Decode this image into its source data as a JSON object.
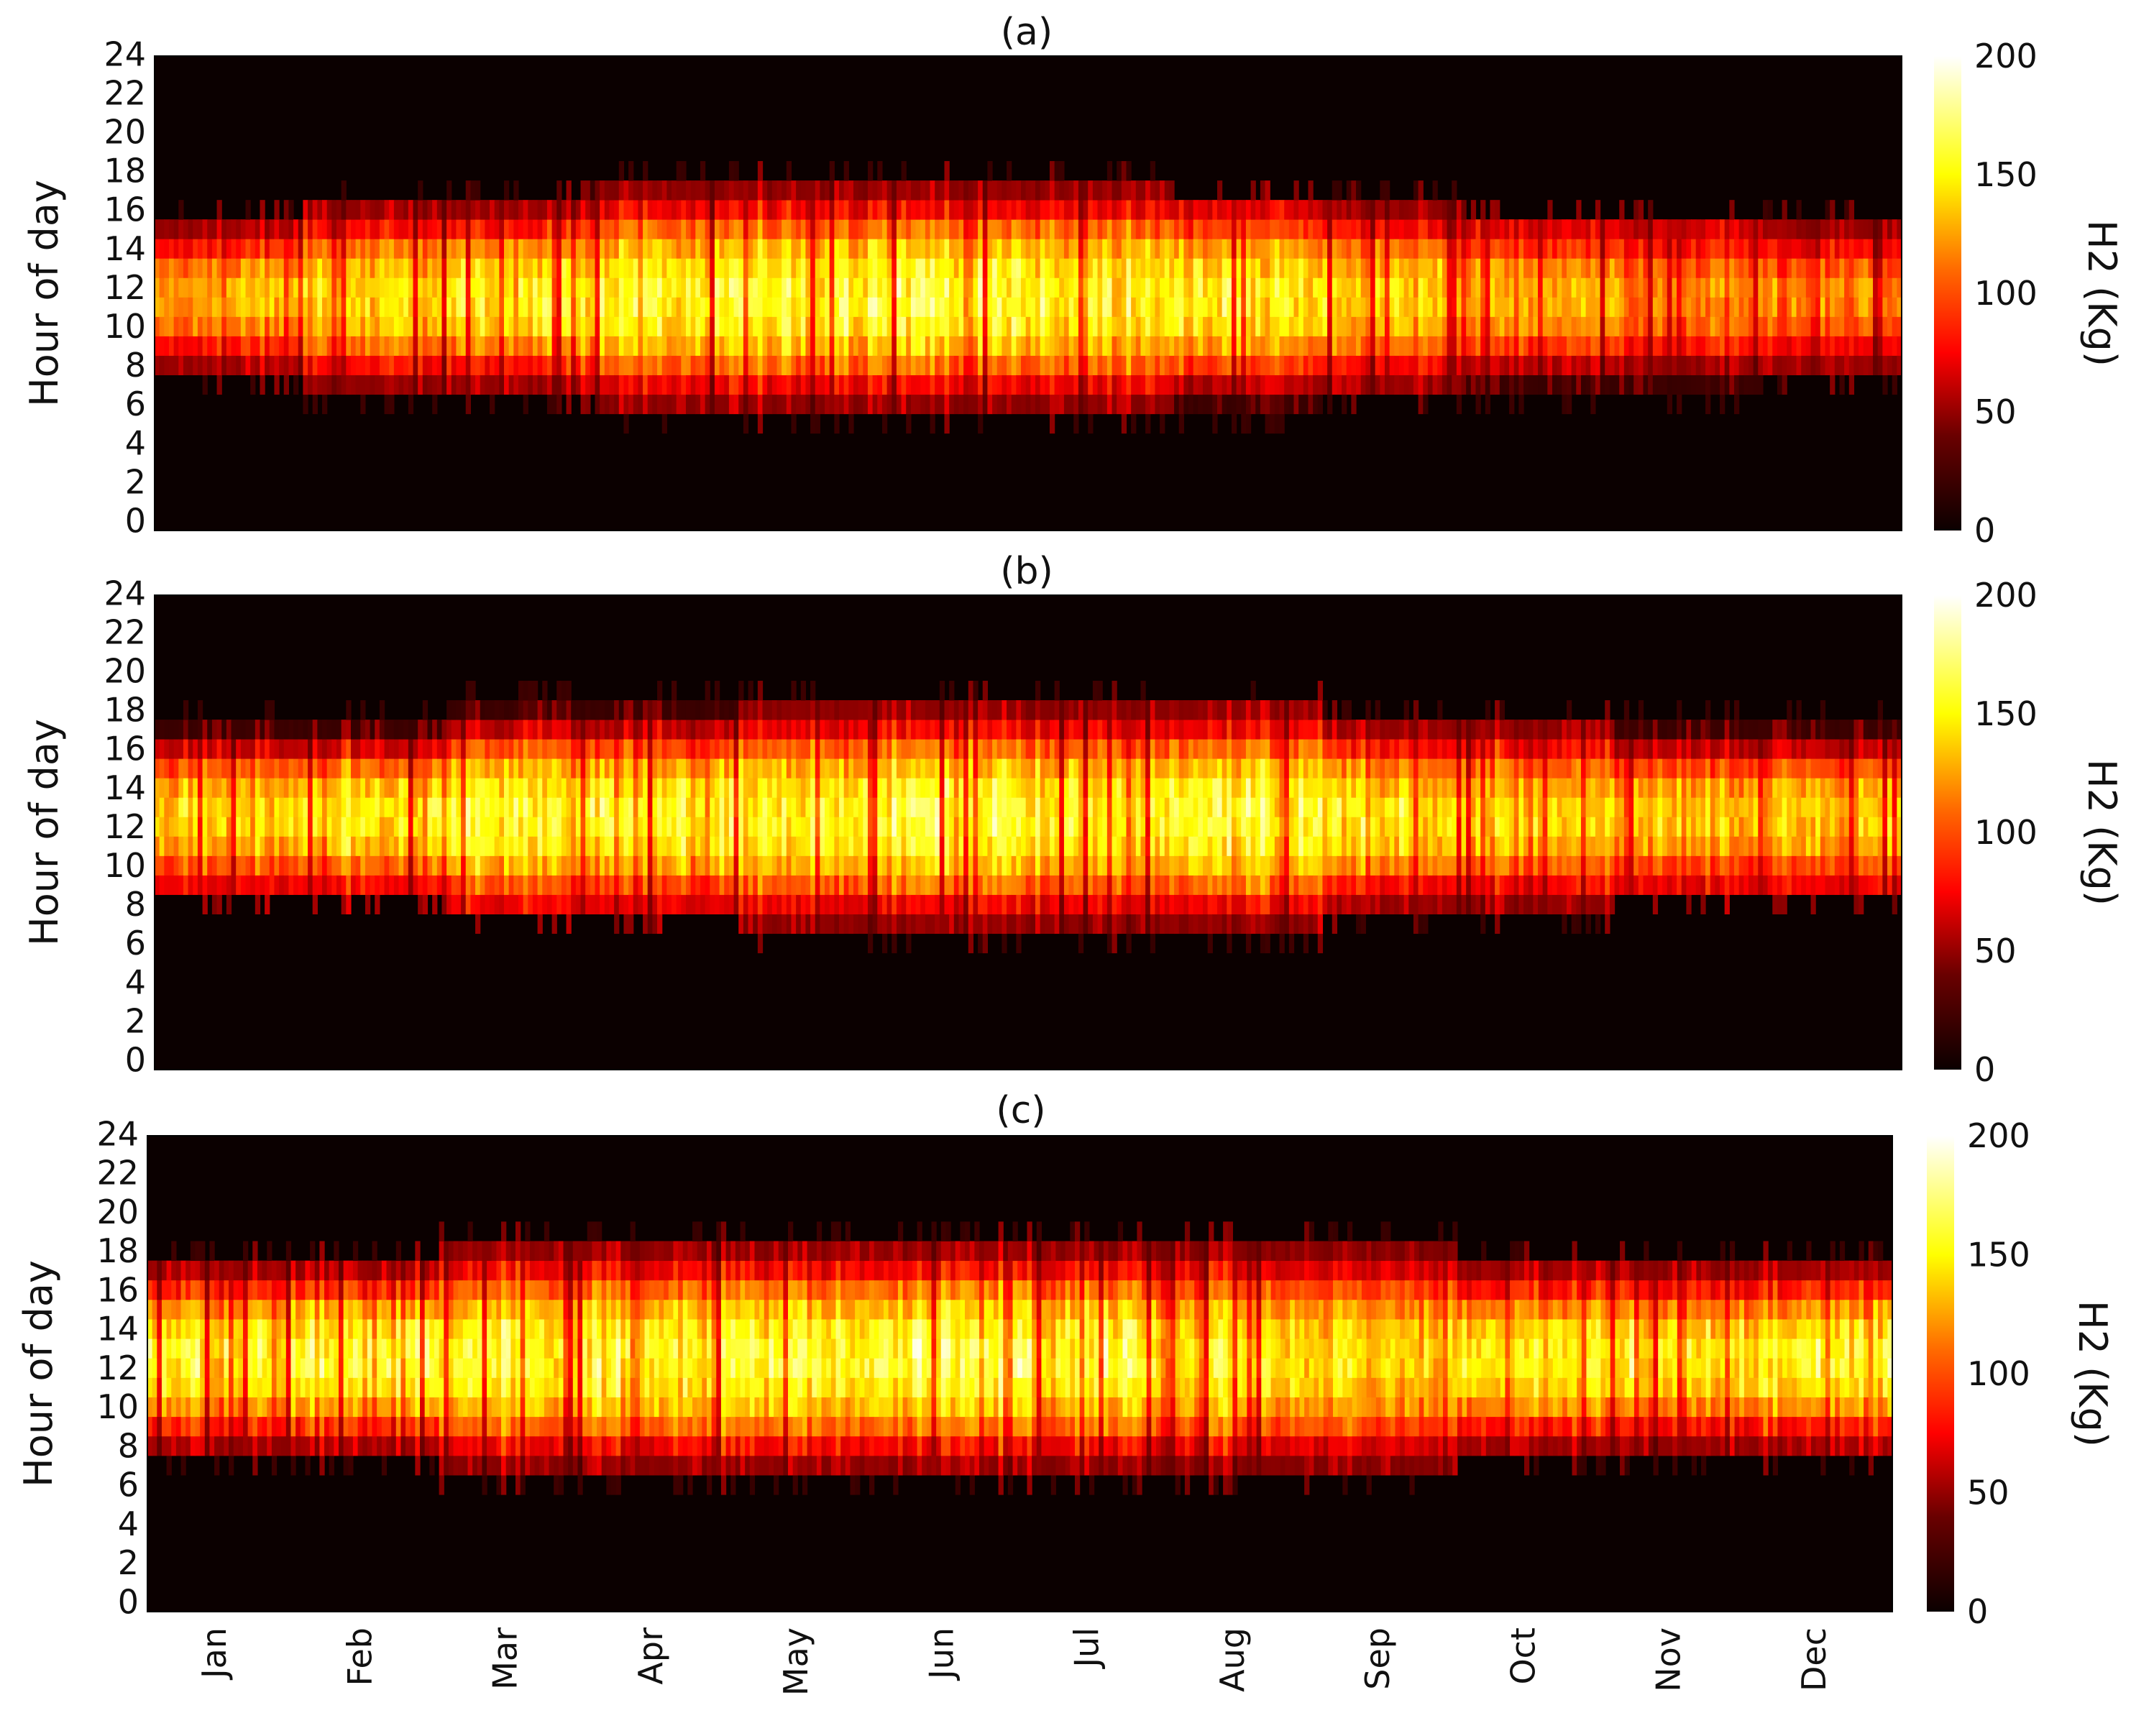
{
  "chart_data": [
    {
      "type": "heatmap",
      "panel": "(a)",
      "title": "(a)",
      "ylabel": "Hour of day",
      "yticks": [
        0,
        2,
        4,
        6,
        8,
        10,
        12,
        14,
        16,
        18,
        20,
        22,
        24
      ],
      "ylim": [
        0,
        24
      ],
      "xticks": [
        "Jan",
        "Feb",
        "Mar",
        "Apr",
        "May",
        "Jun",
        "Jul",
        "Aug",
        "Sep",
        "Oct",
        "Nov",
        "Dec"
      ],
      "colorbar": {
        "label": "H2 (Kg)",
        "ticks": [
          0,
          50,
          100,
          150,
          200
        ],
        "range": [
          0,
          200
        ],
        "colormap": "hot"
      },
      "profile": {
        "hours_start": [
          8,
          7,
          7,
          6,
          6,
          6,
          6,
          6,
          7,
          7,
          7,
          8
        ],
        "hours_end": [
          15,
          16,
          16,
          17,
          17,
          17,
          17,
          16,
          16,
          15,
          15,
          15
        ],
        "peak_hour": 11.5,
        "peak_value": [
          140,
          150,
          160,
          165,
          170,
          170,
          165,
          160,
          150,
          135,
          125,
          125
        ]
      }
    },
    {
      "type": "heatmap",
      "panel": "(b)",
      "title": "(b)",
      "ylabel": "Hour of day",
      "yticks": [
        0,
        2,
        4,
        6,
        8,
        10,
        12,
        14,
        16,
        18,
        20,
        22,
        24
      ],
      "ylim": [
        0,
        24
      ],
      "xticks": [
        "Jan",
        "Feb",
        "Mar",
        "Apr",
        "May",
        "Jun",
        "Jul",
        "Aug",
        "Sep",
        "Oct",
        "Nov",
        "Dec"
      ],
      "colorbar": {
        "label": "H2 (Kg)",
        "ticks": [
          0,
          50,
          100,
          150,
          200
        ],
        "range": [
          0,
          200
        ],
        "colormap": "hot"
      },
      "profile": {
        "hours_start": [
          9,
          9,
          8,
          8,
          7,
          7,
          7,
          7,
          8,
          8,
          9,
          9
        ],
        "hours_end": [
          17,
          17,
          18,
          18,
          18,
          18,
          18,
          18,
          17,
          17,
          17,
          17
        ],
        "peak_hour": 12.5,
        "peak_value": [
          150,
          160,
          175,
          170,
          165,
          170,
          165,
          170,
          160,
          150,
          145,
          145
        ]
      }
    },
    {
      "type": "heatmap",
      "panel": "(c)",
      "title": "(c)",
      "ylabel": "Hour of day",
      "yticks": [
        0,
        2,
        4,
        6,
        8,
        10,
        12,
        14,
        16,
        18,
        20,
        22,
        24
      ],
      "ylim": [
        0,
        24
      ],
      "xticks": [
        "Jan",
        "Feb",
        "Mar",
        "Apr",
        "May",
        "Jun",
        "Jul",
        "Aug",
        "Sep",
        "Oct",
        "Nov",
        "Dec"
      ],
      "colorbar": {
        "label": "H2 (Kg)",
        "ticks": [
          0,
          50,
          100,
          150,
          200
        ],
        "range": [
          0,
          200
        ],
        "colormap": "hot"
      },
      "profile": {
        "hours_start": [
          8,
          8,
          7,
          7,
          7,
          7,
          7,
          7,
          7,
          8,
          8,
          8
        ],
        "hours_end": [
          17,
          17,
          18,
          18,
          18,
          18,
          18,
          18,
          18,
          17,
          17,
          17
        ],
        "peak_hour": 12.5,
        "peak_value": [
          165,
          170,
          170,
          165,
          170,
          175,
          170,
          160,
          150,
          160,
          165,
          165
        ]
      }
    }
  ]
}
